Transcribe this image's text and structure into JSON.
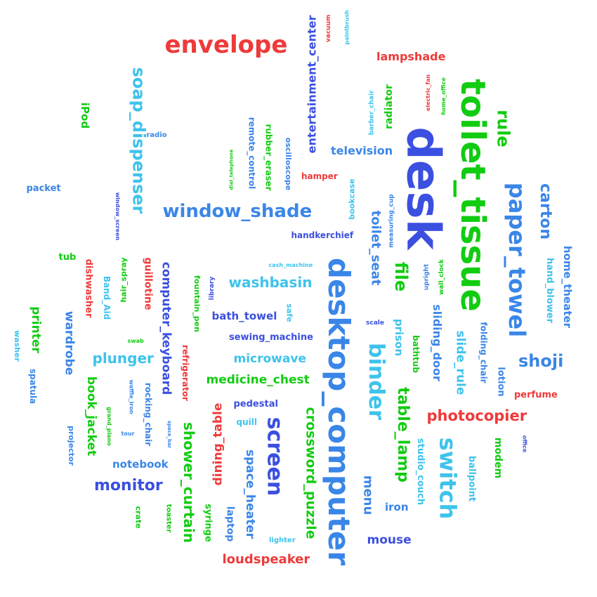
{
  "colors": {
    "red": "#ee3a3a",
    "green": "#11cc11",
    "blue": "#3b4fe0",
    "azure": "#3a86e8",
    "cyan": "#3ec3ec",
    "background": "#ffffff"
  },
  "words": [
    {
      "text": "envelope",
      "color": "red"
    },
    {
      "text": "entertainment_center",
      "color": "blue"
    },
    {
      "text": "vacuum",
      "color": "red"
    },
    {
      "text": "paintbrush",
      "color": "cyan"
    },
    {
      "text": "lampshade",
      "color": "red"
    },
    {
      "text": "soap_dispenser",
      "color": "cyan"
    },
    {
      "text": "iPod",
      "color": "green"
    },
    {
      "text": "radio",
      "color": "azure"
    },
    {
      "text": "toilet_tissue",
      "color": "green"
    },
    {
      "text": "desk",
      "color": "blue"
    },
    {
      "text": "rule",
      "color": "green"
    },
    {
      "text": "radiator",
      "color": "green"
    },
    {
      "text": "barber_chair",
      "color": "cyan"
    },
    {
      "text": "electric_fan",
      "color": "red"
    },
    {
      "text": "home_office",
      "color": "green"
    },
    {
      "text": "remote_control",
      "color": "azure"
    },
    {
      "text": "rubber_eraser",
      "color": "green"
    },
    {
      "text": "oscilloscope",
      "color": "azure"
    },
    {
      "text": "dial_telephone",
      "color": "green"
    },
    {
      "text": "television",
      "color": "azure"
    },
    {
      "text": "hamper",
      "color": "red"
    },
    {
      "text": "packet",
      "color": "azure"
    },
    {
      "text": "window_screen",
      "color": "blue"
    },
    {
      "text": "window_shade",
      "color": "azure"
    },
    {
      "text": "bookcase",
      "color": "cyan"
    },
    {
      "text": "measuring_cup",
      "color": "azure"
    },
    {
      "text": "paper_towel",
      "color": "azure"
    },
    {
      "text": "carton",
      "color": "azure"
    },
    {
      "text": "handkerchief",
      "color": "blue"
    },
    {
      "text": "toilet_seat",
      "color": "azure"
    },
    {
      "text": "tub",
      "color": "green"
    },
    {
      "text": "hair_spray",
      "color": "green"
    },
    {
      "text": "guillotine",
      "color": "red"
    },
    {
      "text": "computer_keyboard",
      "color": "blue"
    },
    {
      "text": "dishwasher",
      "color": "red"
    },
    {
      "text": "Band_Aid",
      "color": "cyan"
    },
    {
      "text": "fountain_pen",
      "color": "green"
    },
    {
      "text": "library",
      "color": "blue"
    },
    {
      "text": "cash_machine",
      "color": "cyan"
    },
    {
      "text": "washbasin",
      "color": "cyan"
    },
    {
      "text": "desktop_computer",
      "color": "azure"
    },
    {
      "text": "file",
      "color": "green"
    },
    {
      "text": "upright",
      "color": "azure"
    },
    {
      "text": "wall_clock",
      "color": "green"
    },
    {
      "text": "hand_blower",
      "color": "cyan"
    },
    {
      "text": "home_theater",
      "color": "azure"
    },
    {
      "text": "printer",
      "color": "green"
    },
    {
      "text": "wardrobe",
      "color": "azure"
    },
    {
      "text": "bath_towel",
      "color": "blue"
    },
    {
      "text": "safe",
      "color": "cyan"
    },
    {
      "text": "scale",
      "color": "blue"
    },
    {
      "text": "sliding_door",
      "color": "azure"
    },
    {
      "text": "folding_chair",
      "color": "azure"
    },
    {
      "text": "washer",
      "color": "cyan"
    },
    {
      "text": "sewing_machine",
      "color": "blue"
    },
    {
      "text": "swab",
      "color": "green"
    },
    {
      "text": "binder",
      "color": "cyan"
    },
    {
      "text": "prison",
      "color": "cyan"
    },
    {
      "text": "bathtub",
      "color": "green"
    },
    {
      "text": "slide_rule",
      "color": "cyan"
    },
    {
      "text": "shoji",
      "color": "azure"
    },
    {
      "text": "spatula",
      "color": "azure"
    },
    {
      "text": "plunger",
      "color": "cyan"
    },
    {
      "text": "microwave",
      "color": "cyan"
    },
    {
      "text": "refrigerator",
      "color": "red"
    },
    {
      "text": "medicine_chest",
      "color": "green"
    },
    {
      "text": "lotion",
      "color": "azure"
    },
    {
      "text": "perfume",
      "color": "red"
    },
    {
      "text": "book_jacket",
      "color": "green"
    },
    {
      "text": "waffle_iron",
      "color": "azure"
    },
    {
      "text": "rocking_chair",
      "color": "azure"
    },
    {
      "text": "grand_piano",
      "color": "green"
    },
    {
      "text": "pedestal",
      "color": "blue"
    },
    {
      "text": "table_lamp",
      "color": "green"
    },
    {
      "text": "photocopier",
      "color": "red"
    },
    {
      "text": "projector",
      "color": "azure"
    },
    {
      "text": "tour",
      "color": "azure"
    },
    {
      "text": "space_bar",
      "color": "azure"
    },
    {
      "text": "shower_curtain",
      "color": "green"
    },
    {
      "text": "dining_table",
      "color": "red"
    },
    {
      "text": "crossword_puzzle",
      "color": "green"
    },
    {
      "text": "quill",
      "color": "cyan"
    },
    {
      "text": "screen",
      "color": "blue"
    },
    {
      "text": "studio_couch",
      "color": "cyan"
    },
    {
      "text": "switch",
      "color": "cyan"
    },
    {
      "text": "modem",
      "color": "green"
    },
    {
      "text": "office",
      "color": "blue"
    },
    {
      "text": "notebook",
      "color": "azure"
    },
    {
      "text": "ballpoint",
      "color": "cyan"
    },
    {
      "text": "monitor",
      "color": "blue"
    },
    {
      "text": "menu",
      "color": "azure"
    },
    {
      "text": "crate",
      "color": "green"
    },
    {
      "text": "toaster",
      "color": "green"
    },
    {
      "text": "syringe",
      "color": "green"
    },
    {
      "text": "laptop",
      "color": "azure"
    },
    {
      "text": "space_heater",
      "color": "azure"
    },
    {
      "text": "iron",
      "color": "azure"
    },
    {
      "text": "lighter",
      "color": "cyan"
    },
    {
      "text": "mouse",
      "color": "blue"
    },
    {
      "text": "loudspeaker",
      "color": "red"
    }
  ]
}
